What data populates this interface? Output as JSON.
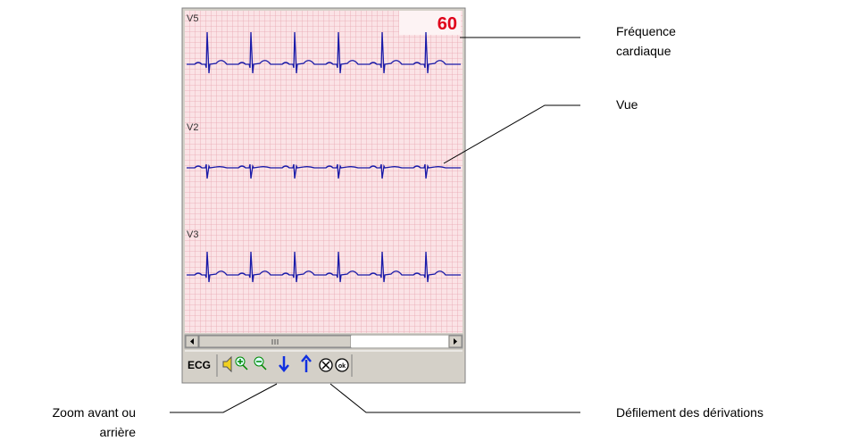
{
  "window": {
    "leads": [
      "V5",
      "V2",
      "V3"
    ],
    "heart_rate": 60,
    "toolbar_label": "ECG"
  },
  "annotations": {
    "heart_rate": [
      "Fréquence",
      "cardiaque"
    ],
    "view": "Vue",
    "zoom": [
      "Zoom avant ou",
      "arrière"
    ],
    "scroll": "Défilement des dérivations"
  }
}
